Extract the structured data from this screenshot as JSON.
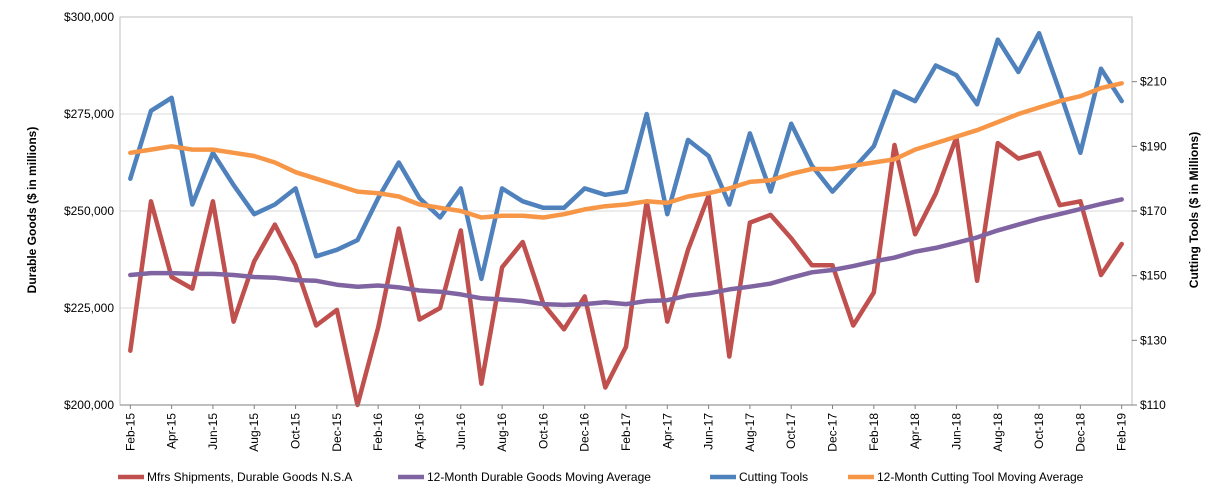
{
  "chart_data": {
    "type": "line",
    "title": "",
    "xlabel": "",
    "ylabel_left": "Durable Goods ($ in millions)",
    "ylabel_right": "Cutting Tools ($ in Millions)",
    "ylim_left": [
      200000,
      300000
    ],
    "ylim_right": [
      110,
      230
    ],
    "yticks_left": [
      200000,
      225000,
      250000,
      275000,
      300000
    ],
    "yticks_left_labels": [
      "$200,000",
      "$225,000",
      "$250,000",
      "$275,000",
      "$300,000"
    ],
    "yticks_right": [
      110,
      130,
      150,
      170,
      190,
      210
    ],
    "yticks_right_labels": [
      "$110",
      "$130",
      "$150",
      "$170",
      "$190",
      "$210"
    ],
    "x": [
      "Feb-15",
      "Mar-15",
      "Apr-15",
      "May-15",
      "Jun-15",
      "Jul-15",
      "Aug-15",
      "Sep-15",
      "Oct-15",
      "Nov-15",
      "Dec-15",
      "Jan-16",
      "Feb-16",
      "Mar-16",
      "Apr-16",
      "May-16",
      "Jun-16",
      "Jul-16",
      "Aug-16",
      "Sep-16",
      "Oct-16",
      "Nov-16",
      "Dec-16",
      "Jan-17",
      "Feb-17",
      "Mar-17",
      "Apr-17",
      "May-17",
      "Jun-17",
      "Jul-17",
      "Aug-17",
      "Sep-17",
      "Oct-17",
      "Nov-17",
      "Dec-17",
      "Jan-18",
      "Feb-18",
      "Mar-18",
      "Apr-18",
      "May-18",
      "Jun-18",
      "Jul-18",
      "Aug-18",
      "Sep-18",
      "Oct-18",
      "Nov-18",
      "Dec-18",
      "Jan-19",
      "Feb-19"
    ],
    "x_tick_labels": [
      "Feb-15",
      "Apr-15",
      "Jun-15",
      "Aug-15",
      "Oct-15",
      "Dec-15",
      "Feb-16",
      "Apr-16",
      "Jun-16",
      "Aug-16",
      "Oct-16",
      "Dec-16",
      "Feb-17",
      "Apr-17",
      "Jun-17",
      "Aug-17",
      "Oct-17",
      "Dec-17",
      "Feb-18",
      "Apr-18",
      "Jun-18",
      "Aug-18",
      "Oct-18",
      "Dec-18",
      "Feb-19"
    ],
    "grid": "horizontal",
    "legend_position": "bottom",
    "series": [
      {
        "name": "Mfrs Shipments, Durable Goods N.S.A",
        "axis": "left",
        "color": "#c0504d",
        "values": [
          214000,
          252500,
          233000,
          230000,
          252500,
          221500,
          237000,
          246500,
          236000,
          220500,
          224500,
          200000,
          220000,
          245500,
          222000,
          225000,
          245000,
          205500,
          235500,
          242000,
          226000,
          219500,
          228000,
          204500,
          215000,
          252500,
          221500,
          240000,
          254000,
          212500,
          247000,
          249000,
          243000,
          236000,
          236000,
          220500,
          229000,
          267000,
          244000,
          254500,
          269000,
          232000,
          267500,
          263500,
          265000,
          251500,
          252500,
          233500,
          241500
        ]
      },
      {
        "name": "12-Month Durable Goods Moving Average",
        "axis": "left",
        "color": "#8064a2",
        "values": [
          233500,
          234000,
          234000,
          233800,
          233800,
          233500,
          233000,
          232800,
          232200,
          232000,
          231000,
          230500,
          230800,
          230300,
          229500,
          229200,
          228500,
          227500,
          227200,
          226800,
          226000,
          225800,
          226000,
          226500,
          226000,
          226800,
          227000,
          228200,
          228800,
          229800,
          230500,
          231300,
          232800,
          234200,
          234800,
          235800,
          237000,
          238000,
          239500,
          240500,
          241800,
          243200,
          245000,
          246500,
          248000,
          249200,
          250500,
          251800,
          253000
        ]
      },
      {
        "name": "Cutting Tools",
        "axis": "right",
        "color": "#4f81bd",
        "values": [
          180,
          201,
          205,
          172,
          188,
          178,
          169,
          172,
          177,
          156,
          158,
          161,
          174,
          185,
          174,
          168,
          177,
          149,
          177,
          173,
          171,
          171,
          177,
          175,
          176,
          200,
          169,
          192,
          187,
          172,
          194,
          176,
          197,
          184,
          176,
          183,
          190,
          207,
          204,
          215,
          212,
          203,
          223,
          213,
          225,
          207,
          188,
          214,
          204
        ]
      },
      {
        "name": "12-Month Cutting Tool Moving Average",
        "axis": "right",
        "color": "#f79646",
        "values": [
          188,
          189,
          190,
          189,
          189,
          188,
          187,
          185,
          182,
          180,
          178,
          176,
          175.5,
          174.5,
          172,
          171,
          170,
          168,
          168.5,
          168.5,
          168,
          169,
          170.5,
          171.5,
          172,
          173,
          172.5,
          174.5,
          175.5,
          177,
          179,
          179.5,
          181.5,
          183,
          183,
          184,
          185,
          186,
          189,
          191,
          193,
          195,
          197.5,
          200,
          202,
          204,
          205.5,
          208,
          209.5
        ]
      }
    ]
  }
}
